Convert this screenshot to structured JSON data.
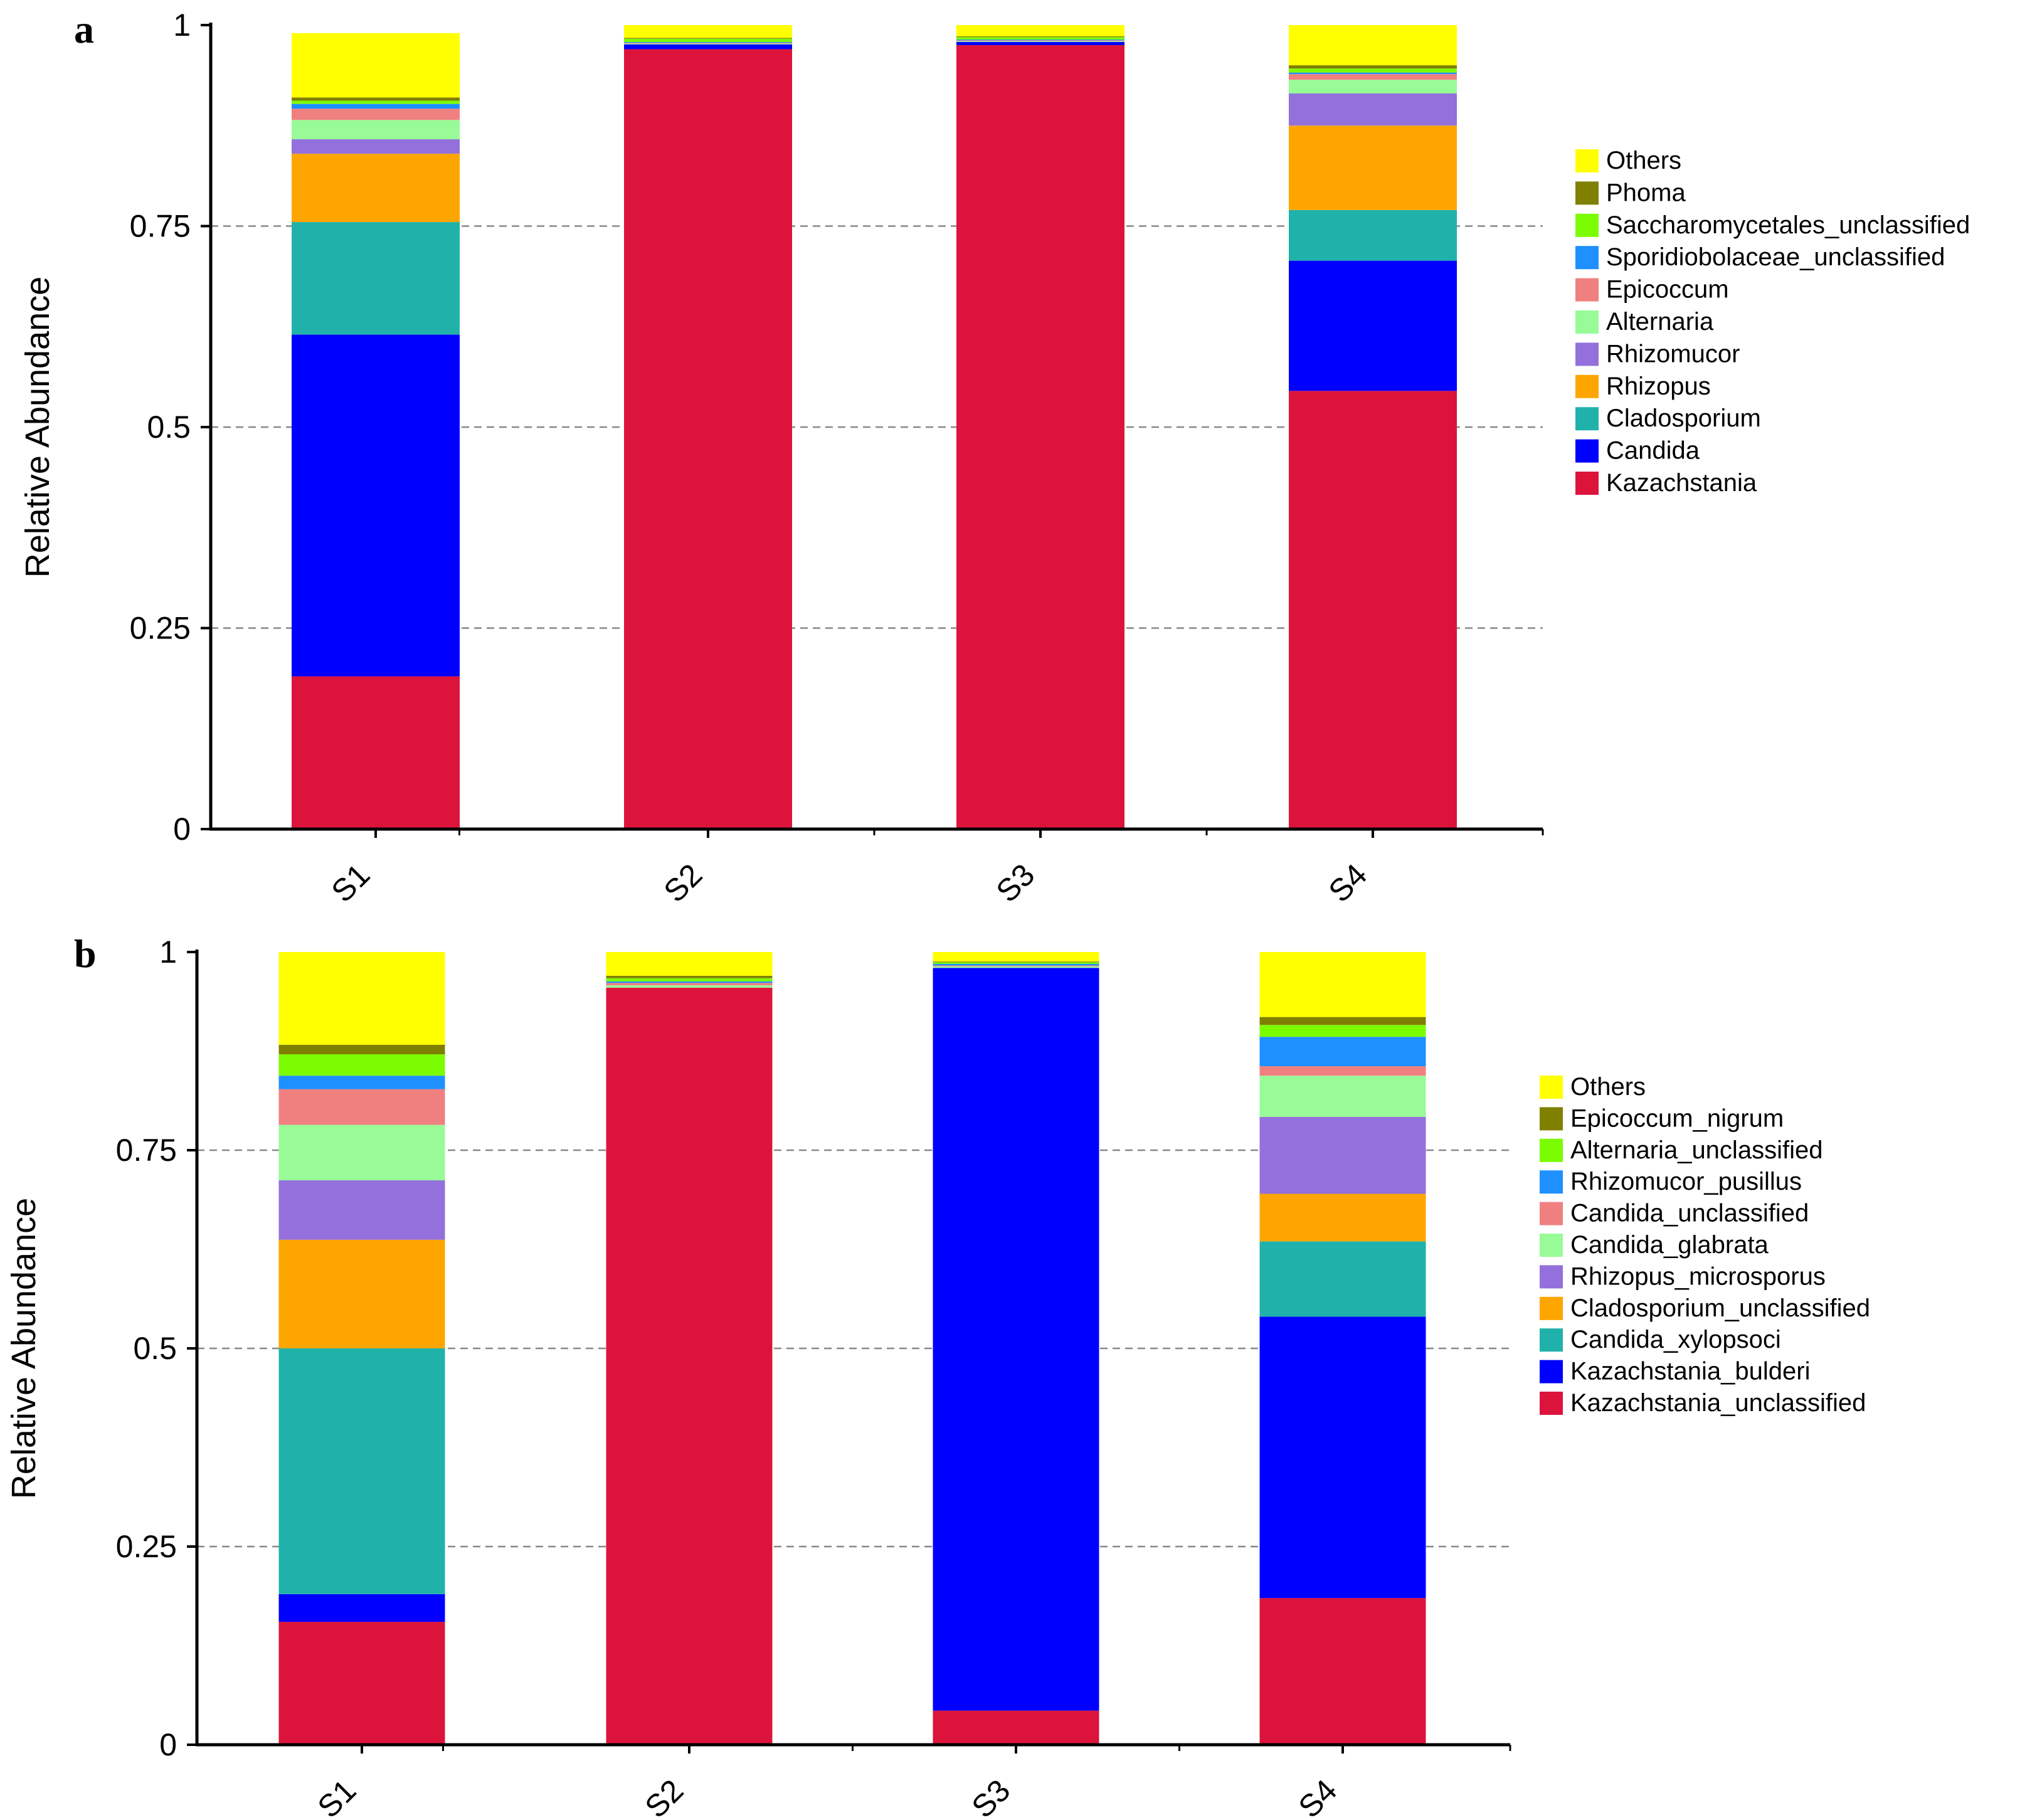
{
  "chart_data": [
    {
      "type": "bar",
      "stacked": true,
      "panel": "a",
      "categories": [
        "S1",
        "S2",
        "S3",
        "S4"
      ],
      "ylabel": "Relative Abundance",
      "ylim": [
        0,
        1
      ],
      "yticks": [
        "0",
        "0.25",
        "0.5",
        "0.75",
        "1"
      ],
      "grid": "dashed horizontal",
      "legend_position": "right",
      "series": [
        {
          "name": "Kazachstania",
          "color": "#DC143C",
          "values": [
            0.19,
            0.97,
            0.975,
            0.545
          ]
        },
        {
          "name": "Candida",
          "color": "#0000FF",
          "values": [
            0.425,
            0.006,
            0.004,
            0.162
          ]
        },
        {
          "name": "Cladosporium",
          "color": "#20B2AA",
          "values": [
            0.14,
            0.0,
            0.0,
            0.063
          ]
        },
        {
          "name": "Rhizopus",
          "color": "#FFA500",
          "values": [
            0.085,
            0.0,
            0.0,
            0.105
          ]
        },
        {
          "name": "Rhizomucor",
          "color": "#9370DB",
          "values": [
            0.018,
            0.0,
            0.0,
            0.04
          ]
        },
        {
          "name": "Alternaria",
          "color": "#98FB98",
          "values": [
            0.024,
            0.001,
            0.001,
            0.017
          ]
        },
        {
          "name": "Epicoccum",
          "color": "#F08080",
          "values": [
            0.014,
            0.001,
            0.001,
            0.007
          ]
        },
        {
          "name": "Sporidiobolaceae_unclassified",
          "color": "#1E90FF",
          "values": [
            0.006,
            0.001,
            0.001,
            0.002
          ]
        },
        {
          "name": "Saccharomycetales_unclassified",
          "color": "#7CFC00",
          "values": [
            0.004,
            0.004,
            0.003,
            0.005
          ]
        },
        {
          "name": "Phoma",
          "color": "#808000",
          "values": [
            0.004,
            0.001,
            0.001,
            0.004
          ]
        },
        {
          "name": "Others",
          "color": "#FFFF00",
          "values": [
            0.08,
            0.016,
            0.014,
            0.05
          ]
        }
      ]
    },
    {
      "type": "bar",
      "stacked": true,
      "panel": "b",
      "categories": [
        "S1",
        "S2",
        "S3",
        "S4"
      ],
      "ylabel": "Relative Abundance",
      "ylim": [
        0,
        1
      ],
      "yticks": [
        "0",
        "0.25",
        "0.5",
        "0.75",
        "1"
      ],
      "grid": "dashed horizontal",
      "legend_position": "right",
      "series": [
        {
          "name": "Kazachstania_unclassified",
          "color": "#DC143C",
          "values": [
            0.155,
            0.955,
            0.043,
            0.185
          ]
        },
        {
          "name": "Kazachstania_bulderi",
          "color": "#0000FF",
          "values": [
            0.035,
            0.0,
            0.937,
            0.355
          ]
        },
        {
          "name": "Candida_xylopsoci",
          "color": "#20B2AA",
          "values": [
            0.31,
            0.0,
            0.0,
            0.095
          ]
        },
        {
          "name": "Cladosporium_unclassified",
          "color": "#FFA500",
          "values": [
            0.137,
            0.0,
            0.0,
            0.06
          ]
        },
        {
          "name": "Rhizopus_microsporus",
          "color": "#9370DB",
          "values": [
            0.075,
            0.0,
            0.0,
            0.097
          ]
        },
        {
          "name": "Candida_glabrata",
          "color": "#98FB98",
          "values": [
            0.07,
            0.003,
            0.002,
            0.052
          ]
        },
        {
          "name": "Candida_unclassified",
          "color": "#F08080",
          "values": [
            0.045,
            0.003,
            0.001,
            0.012
          ]
        },
        {
          "name": "Rhizomucor_pusillus",
          "color": "#1E90FF",
          "values": [
            0.017,
            0.002,
            0.002,
            0.037
          ]
        },
        {
          "name": "Alternaria_unclassified",
          "color": "#7CFC00",
          "values": [
            0.027,
            0.004,
            0.002,
            0.015
          ]
        },
        {
          "name": "Epicoccum_nigrum",
          "color": "#808000",
          "values": [
            0.012,
            0.003,
            0.001,
            0.01
          ]
        },
        {
          "name": "Others",
          "color": "#FFFF00",
          "values": [
            0.117,
            0.03,
            0.012,
            0.082
          ]
        }
      ]
    }
  ]
}
